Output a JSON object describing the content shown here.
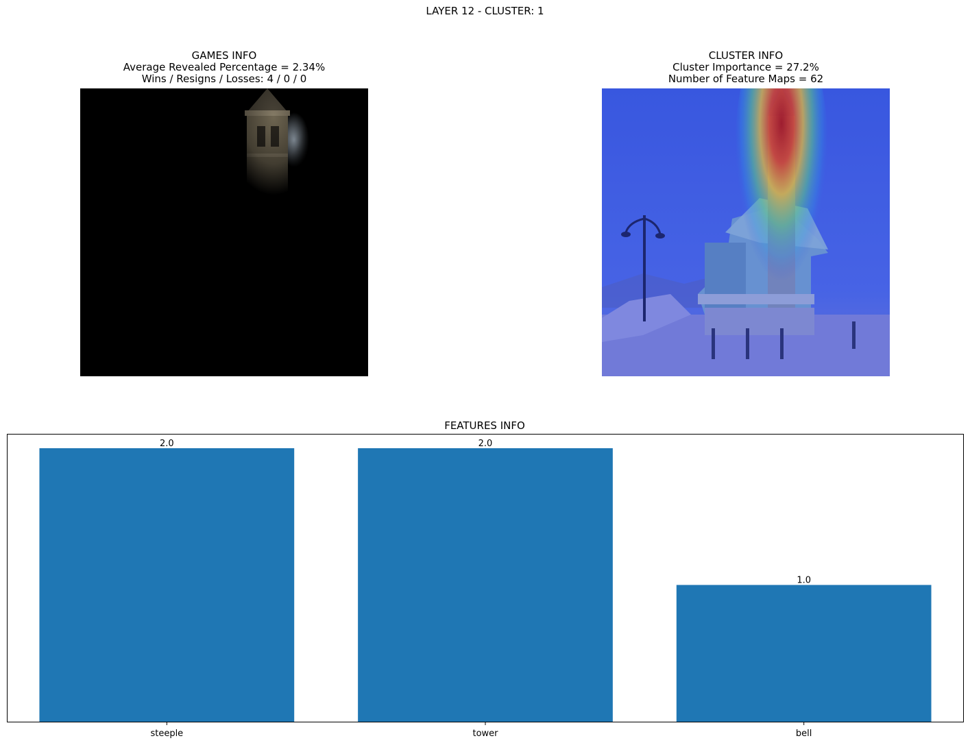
{
  "figure_title": "LAYER 12 - CLUSTER: 1",
  "games_info": {
    "title": "GAMES INFO",
    "line1": "Average Revealed Percentage = 2.34%",
    "line2": "Wins / Resigns / Losses: 4 / 0 / 0"
  },
  "cluster_info": {
    "title": "CLUSTER INFO",
    "line1": "Cluster Importance = 27.2%",
    "line2": "Number of Feature Maps = 62"
  },
  "images": {
    "revealed": "masked image revealing bell tower",
    "heatmap": "church with heatmap overlay on tower"
  },
  "chart_data": {
    "type": "bar",
    "title": "FEATURES INFO",
    "categories": [
      "steeple",
      "tower",
      "bell"
    ],
    "values": [
      2.0,
      2.0,
      1.0
    ],
    "value_labels": [
      "2.0",
      "2.0",
      "1.0"
    ],
    "ylim": [
      0,
      2.1
    ],
    "color": "#1f77b4",
    "grid": false,
    "y_ticks_visible": false
  }
}
